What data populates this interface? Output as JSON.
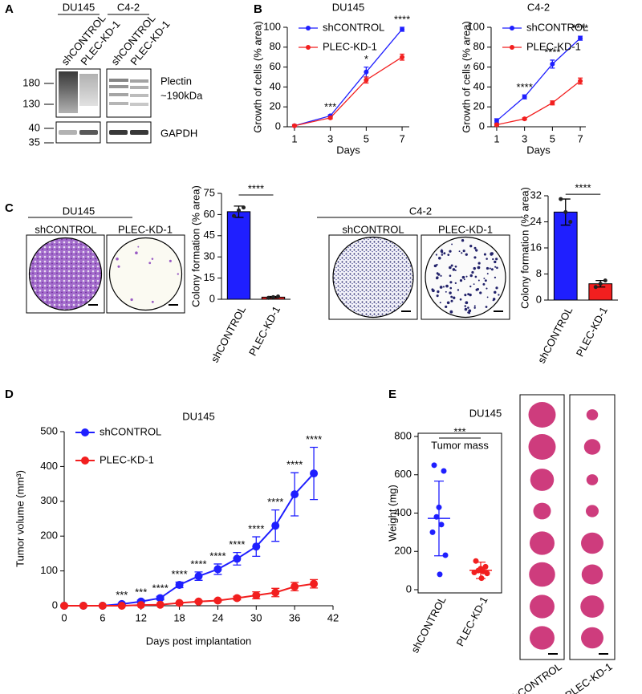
{
  "panel_labels": [
    "A",
    "B",
    "C",
    "D",
    "E"
  ],
  "blot": {
    "groups": [
      "DU145",
      "C4-2"
    ],
    "lanes": [
      "shCONTROL",
      "PLEC-KD-1",
      "shCONTROL",
      "PLEC-KD-1"
    ],
    "markers": [
      180,
      130,
      40,
      35
    ],
    "proteins": [
      "Plectin",
      "~190kDa",
      "GAPDH"
    ]
  },
  "colony_images": [
    {
      "title": "DU145",
      "labels": [
        "shCONTROL",
        "PLEC-KD-1"
      ]
    },
    {
      "title": "C4-2",
      "labels": [
        "shCONTROL",
        "PLEC-KD-1"
      ]
    }
  ],
  "tumor_images": {
    "title": "DU145",
    "labels": [
      "shCONTROL",
      "PLEC-KD-1"
    ]
  },
  "chart_data": [
    {
      "type": "line",
      "title": "DU145",
      "xlabel": "Days",
      "ylabel": "Growth of cells (% area)",
      "x": [
        1,
        3,
        5,
        7
      ],
      "xlim": [
        0.6,
        7.4
      ],
      "xticks": [
        1,
        3,
        5,
        7
      ],
      "ylim": [
        0,
        100
      ],
      "yticks": [
        0,
        20,
        40,
        60,
        80,
        100
      ],
      "legend": "upper left",
      "series": [
        {
          "name": "shCONTROL",
          "color": "#1f1fff",
          "values": [
            1,
            11,
            55,
            98
          ],
          "errors": [
            1,
            1,
            5,
            2
          ]
        },
        {
          "name": "PLEC-KD-1",
          "color": "#f21f1f",
          "values": [
            1,
            9,
            47,
            70
          ],
          "errors": [
            1,
            1,
            3,
            3
          ]
        }
      ],
      "annotations": [
        {
          "x": 3,
          "text": "***"
        },
        {
          "x": 5,
          "text": "*"
        },
        {
          "x": 7,
          "text": "****"
        }
      ]
    },
    {
      "type": "line",
      "title": "C4-2",
      "xlabel": "Days",
      "ylabel": "Growth of cells (% area)",
      "x": [
        1,
        3,
        5,
        7
      ],
      "xlim": [
        0.6,
        7.4
      ],
      "xticks": [
        1,
        3,
        5,
        7
      ],
      "ylim": [
        0,
        100
      ],
      "yticks": [
        0,
        20,
        40,
        60,
        80,
        100
      ],
      "legend": "upper left",
      "series": [
        {
          "name": "shCONTROL",
          "color": "#1f1fff",
          "values": [
            6,
            30,
            63,
            89
          ],
          "errors": [
            2,
            2,
            4,
            2
          ]
        },
        {
          "name": "PLEC-KD-1",
          "color": "#f21f1f",
          "values": [
            2,
            8,
            24,
            46
          ],
          "errors": [
            1,
            1,
            2,
            3
          ]
        }
      ],
      "annotations": [
        {
          "x": 3,
          "text": "****"
        },
        {
          "x": 5,
          "text": "****"
        },
        {
          "x": 7,
          "text": "****"
        }
      ]
    },
    {
      "type": "bar",
      "ylabel": "Colony formation (% area)",
      "categories": [
        "shCONTROL",
        "PLEC-KD-1"
      ],
      "colors": [
        "#1f1fff",
        "#f21f1f"
      ],
      "values": [
        62,
        1.5
      ],
      "errors": [
        4,
        0.5
      ],
      "points": [
        [
          59,
          65,
          63
        ],
        [
          1,
          2,
          1.5
        ]
      ],
      "ylim": [
        0,
        75
      ],
      "yticks": [
        0,
        15,
        30,
        45,
        60,
        75
      ],
      "significance": "****"
    },
    {
      "type": "bar",
      "ylabel": "Colony formation (% area)",
      "categories": [
        "shCONTROL",
        "PLEC-KD-1"
      ],
      "colors": [
        "#1f1fff",
        "#f21f1f"
      ],
      "values": [
        27,
        5
      ],
      "errors": [
        4,
        1
      ],
      "points": [
        [
          31,
          24,
          27
        ],
        [
          4,
          6,
          5
        ]
      ],
      "ylim": [
        0,
        32
      ],
      "yticks": [
        0,
        8,
        16,
        24,
        32
      ],
      "significance": "****"
    },
    {
      "type": "line",
      "title": "DU145",
      "xlabel": "Days post implantation",
      "ylabel": "Tumor volume (mm³)",
      "x": [
        0,
        3,
        6,
        9,
        12,
        15,
        18,
        21,
        24,
        27,
        30,
        33,
        36,
        39
      ],
      "xlim": [
        0,
        42
      ],
      "xticks": [
        0,
        6,
        12,
        18,
        24,
        30,
        36,
        42
      ],
      "ylim": [
        0,
        500
      ],
      "yticks": [
        0,
        100,
        200,
        300,
        400,
        500
      ],
      "legend": "upper left",
      "series": [
        {
          "name": "shCONTROL",
          "color": "#1f1fff",
          "values": [
            0,
            0,
            0,
            5,
            12,
            22,
            60,
            85,
            105,
            135,
            170,
            230,
            320,
            380
          ],
          "errors": [
            0,
            0,
            0,
            3,
            4,
            5,
            8,
            12,
            15,
            18,
            28,
            45,
            62,
            75
          ]
        },
        {
          "name": "PLEC-KD-1",
          "color": "#f21f1f",
          "values": [
            0,
            0,
            0,
            0,
            2,
            3,
            8,
            12,
            15,
            22,
            30,
            38,
            55,
            63
          ],
          "errors": [
            0,
            0,
            0,
            0,
            1,
            1,
            2,
            3,
            3,
            5,
            10,
            12,
            12,
            12
          ]
        }
      ],
      "annotations": [
        {
          "x": 9,
          "text": "***"
        },
        {
          "x": 12,
          "text": "***"
        },
        {
          "x": 15,
          "text": "****"
        },
        {
          "x": 18,
          "text": "****"
        },
        {
          "x": 21,
          "text": "****"
        },
        {
          "x": 24,
          "text": "****"
        },
        {
          "x": 27,
          "text": "****"
        },
        {
          "x": 30,
          "text": "****"
        },
        {
          "x": 33,
          "text": "****"
        },
        {
          "x": 36,
          "text": "****"
        },
        {
          "x": 39,
          "text": "****"
        }
      ]
    },
    {
      "type": "dot",
      "title": "Tumor mass",
      "ylabel": "Weight (mg)",
      "categories": [
        "shCONTROL",
        "PLEC-KD-1"
      ],
      "colors": [
        "#1f1fff",
        "#f21f1f"
      ],
      "points": [
        [
          650,
          620,
          430,
          380,
          340,
          300,
          180,
          80
        ],
        [
          150,
          120,
          110,
          100,
          95,
          90,
          85,
          60
        ]
      ],
      "means": [
        372,
        101
      ],
      "sds": [
        195,
        43
      ],
      "ylim": [
        0,
        800
      ],
      "yticks": [
        0,
        200,
        400,
        600,
        800
      ],
      "significance": "***"
    }
  ]
}
